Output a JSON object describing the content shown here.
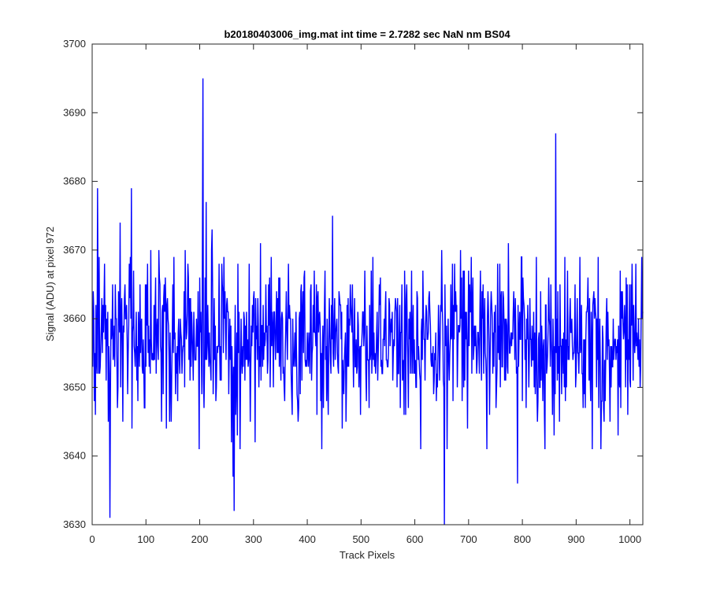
{
  "chart_data": {
    "type": "line",
    "title": "b20180403006_img.mat int time = 2.7282 sec  NaN nm BS04",
    "xlabel": "Track Pixels",
    "ylabel": "Signal (ADU) at pixel 972",
    "xlim": [
      0,
      1024
    ],
    "ylim": [
      3630,
      3700
    ],
    "xticks": [
      0,
      100,
      200,
      300,
      400,
      500,
      600,
      700,
      800,
      900,
      1000
    ],
    "yticks": [
      3630,
      3640,
      3650,
      3660,
      3670,
      3680,
      3690,
      3700
    ],
    "grid": false,
    "series": [
      {
        "color": "#0000ff",
        "x_start": 1,
        "x_step": 1,
        "count": 1024,
        "baseline": 3657,
        "noise_sd": 6,
        "noise_seed": 972,
        "peaks": [
          {
            "x": 10,
            "y": 3679
          },
          {
            "x": 33,
            "y": 3631
          },
          {
            "x": 52,
            "y": 3674
          },
          {
            "x": 73,
            "y": 3679
          },
          {
            "x": 206,
            "y": 3695
          },
          {
            "x": 212,
            "y": 3677
          },
          {
            "x": 262,
            "y": 3637
          },
          {
            "x": 264,
            "y": 3632
          },
          {
            "x": 655,
            "y": 3630
          },
          {
            "x": 791,
            "y": 3636
          },
          {
            "x": 862,
            "y": 3687
          }
        ]
      }
    ]
  }
}
